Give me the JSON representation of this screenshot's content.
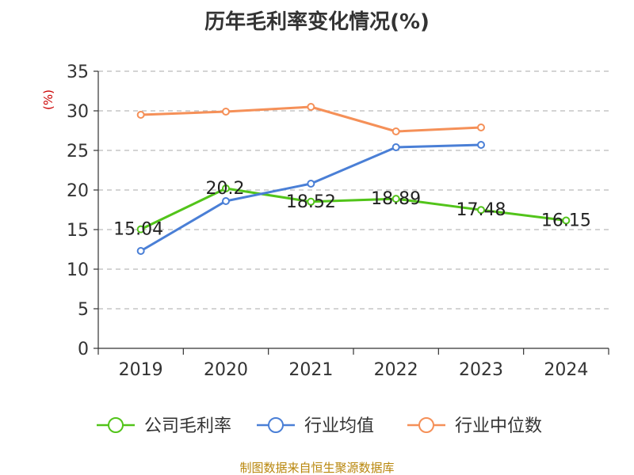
{
  "chart_data": {
    "type": "line",
    "title": "历年毛利率变化情况(%)",
    "ylabel": "(%)",
    "xlabel": "",
    "categories": [
      "2019",
      "2020",
      "2021",
      "2022",
      "2023",
      "2024"
    ],
    "ylim": [
      0,
      35
    ],
    "yticks": [
      "0",
      "5",
      "10",
      "15",
      "20",
      "25",
      "30",
      "35"
    ],
    "grid": true,
    "legend_position": "bottom",
    "series": [
      {
        "name": "公司毛利率",
        "color": "#52c41a",
        "values": [
          15.04,
          20.2,
          18.52,
          18.89,
          17.48,
          16.15
        ],
        "labels": [
          "15.04",
          "20.2",
          "18.52",
          "18.89",
          "17.48",
          "16.15"
        ]
      },
      {
        "name": "行业均值",
        "color": "#4a7fd6",
        "values": [
          12.3,
          18.6,
          20.8,
          25.4,
          25.7,
          null
        ]
      },
      {
        "name": "行业中位数",
        "color": "#f59058",
        "values": [
          29.5,
          29.9,
          30.5,
          27.4,
          27.9,
          null
        ]
      }
    ],
    "source": "制图数据来自恒生聚源数据库"
  }
}
